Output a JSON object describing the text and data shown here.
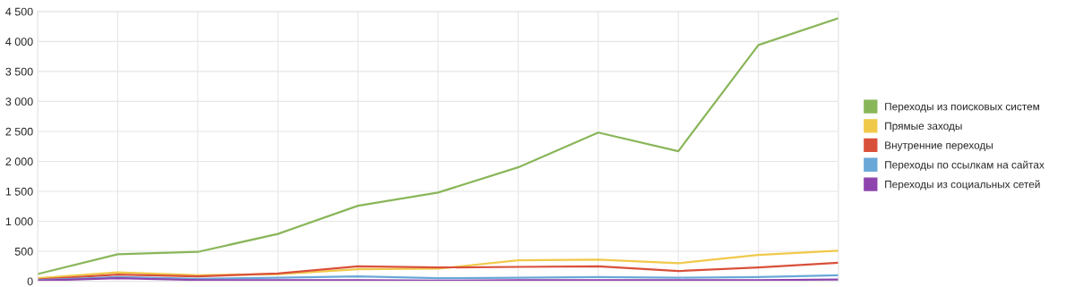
{
  "chart_data": {
    "type": "line",
    "categories": [
      null,
      null,
      null,
      null,
      null,
      null,
      null,
      null,
      null,
      null,
      null
    ],
    "series": [
      {
        "name": "Переходы из поисковых систем",
        "color": "#8ab65a",
        "values": [
          120,
          450,
          490,
          790,
          1260,
          1480,
          1900,
          2480,
          2170,
          3940,
          4390
        ]
      },
      {
        "name": "Прямые заходы",
        "color": "#f0c94a",
        "values": [
          50,
          150,
          100,
          120,
          200,
          210,
          350,
          360,
          300,
          440,
          510
        ]
      },
      {
        "name": "Внутренние переходы",
        "color": "#d9503a",
        "values": [
          30,
          110,
          80,
          130,
          250,
          230,
          240,
          250,
          170,
          230,
          310
        ]
      },
      {
        "name": "Переходы по ссылкам на сайтах",
        "color": "#6aa8d8",
        "values": [
          20,
          70,
          40,
          60,
          80,
          50,
          60,
          70,
          60,
          70,
          100
        ]
      },
      {
        "name": "Переходы из социальных сетей",
        "color": "#8e44ad",
        "values": [
          10,
          50,
          20,
          20,
          20,
          10,
          20,
          20,
          20,
          20,
          30
        ]
      }
    ],
    "ylim": [
      0,
      4500
    ],
    "yticks": [
      0,
      500,
      {
        "value": 1000,
        "label": "1 000"
      },
      {
        "value": 1500,
        "label": "1 500"
      },
      {
        "value": 2000,
        "label": "2 000"
      },
      {
        "value": 2500,
        "label": "2 500"
      },
      {
        "value": 3000,
        "label": "3 000"
      },
      {
        "value": 3500,
        "label": "3 500"
      },
      {
        "value": 4000,
        "label": "4 000"
      },
      {
        "value": 4500,
        "label": "4 500"
      }
    ],
    "grid": true,
    "legend": "right"
  }
}
